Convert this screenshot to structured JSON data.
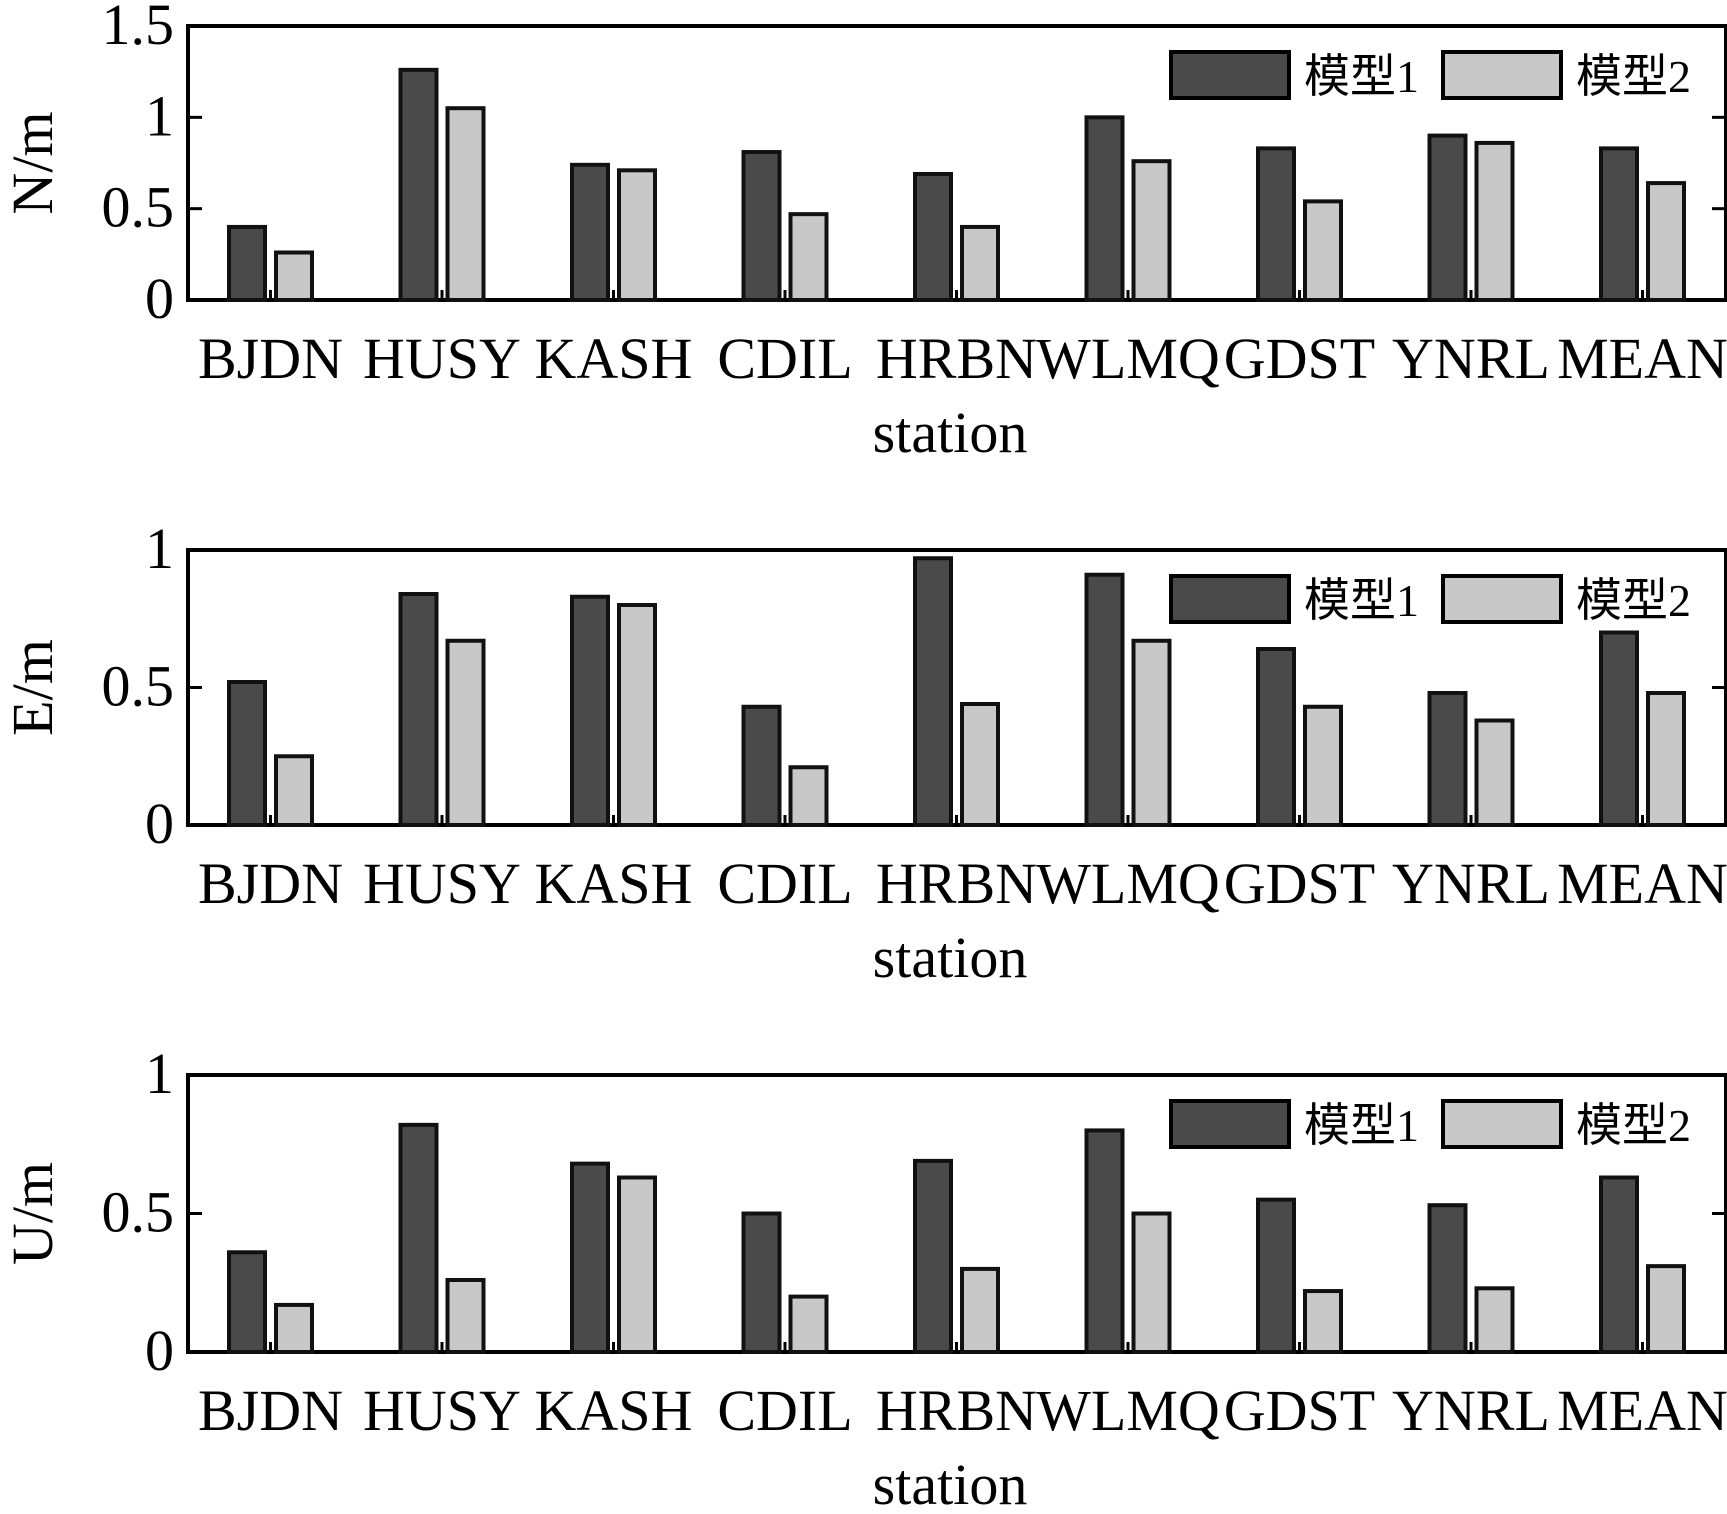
{
  "chart_data": [
    {
      "type": "bar",
      "categories": [
        "BJDN",
        "HUSY",
        "KASH",
        "CDIL",
        "HRBN",
        "WLMQ",
        "GDST",
        "YNRL",
        "MEAN"
      ],
      "series": [
        {
          "name": "模型1",
          "values": [
            0.4,
            1.26,
            0.74,
            0.81,
            0.69,
            1.0,
            0.83,
            0.9,
            0.83
          ]
        },
        {
          "name": "模型2",
          "values": [
            0.26,
            1.05,
            0.71,
            0.47,
            0.4,
            0.76,
            0.54,
            0.86,
            0.64
          ]
        }
      ],
      "xlabel": "station",
      "ylabel": "N/m",
      "ylim": [
        0,
        1.5
      ],
      "yticks": [
        "0",
        "0.5",
        "1",
        "1.5"
      ],
      "colors": [
        "#4a4a4a",
        "#c8c8c8"
      ],
      "grid": false,
      "legend": "top-right"
    },
    {
      "type": "bar",
      "categories": [
        "BJDN",
        "HUSY",
        "KASH",
        "CDIL",
        "HRBN",
        "WLMQ",
        "GDST",
        "YNRL",
        "MEAN"
      ],
      "series": [
        {
          "name": "模型1",
          "values": [
            0.52,
            0.84,
            0.83,
            0.43,
            0.97,
            0.91,
            0.64,
            0.48,
            0.7
          ]
        },
        {
          "name": "模型2",
          "values": [
            0.25,
            0.67,
            0.8,
            0.21,
            0.44,
            0.67,
            0.43,
            0.38,
            0.48
          ]
        }
      ],
      "xlabel": "station",
      "ylabel": "E/m",
      "ylim": [
        0,
        1
      ],
      "yticks": [
        "0",
        "0.5",
        "1"
      ],
      "colors": [
        "#4a4a4a",
        "#c8c8c8"
      ],
      "grid": false,
      "legend": "top-right"
    },
    {
      "type": "bar",
      "categories": [
        "BJDN",
        "HUSY",
        "KASH",
        "CDIL",
        "HRBN",
        "WLMQ",
        "GDST",
        "YNRL",
        "MEAN"
      ],
      "series": [
        {
          "name": "模型1",
          "values": [
            0.36,
            0.82,
            0.68,
            0.5,
            0.69,
            0.8,
            0.55,
            0.53,
            0.63
          ]
        },
        {
          "name": "模型2",
          "values": [
            0.17,
            0.26,
            0.63,
            0.2,
            0.3,
            0.5,
            0.22,
            0.23,
            0.31
          ]
        }
      ],
      "xlabel": "station",
      "ylabel": "U/m",
      "ylim": [
        0,
        1
      ],
      "yticks": [
        "0",
        "0.5",
        "1"
      ],
      "colors": [
        "#4a4a4a",
        "#c8c8c8"
      ],
      "grid": false,
      "legend": "top-right"
    }
  ]
}
